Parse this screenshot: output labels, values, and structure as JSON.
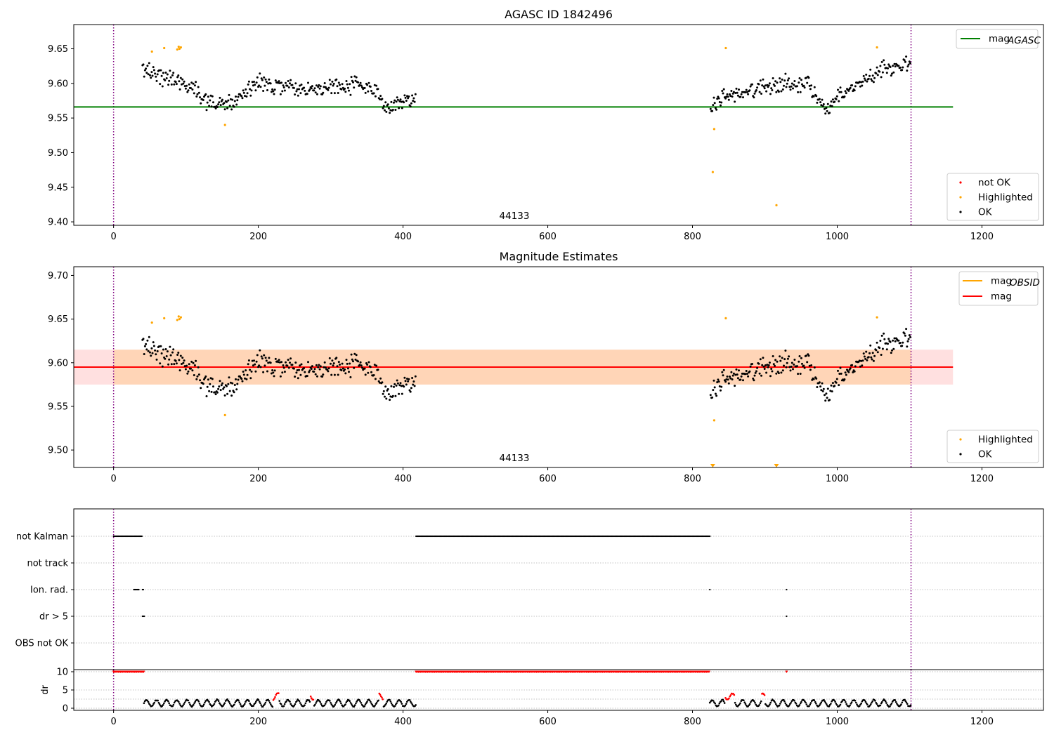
{
  "x_ticks": [
    0,
    200,
    400,
    600,
    800,
    1000,
    1200
  ],
  "obsid_boundaries": [
    0,
    1102
  ],
  "panel1": {
    "title": "AGASC ID 1842496",
    "annotation": "44133",
    "ylim": [
      9.395,
      9.685
    ],
    "y_ticks": [
      "9.40",
      "9.45",
      "9.50",
      "9.55",
      "9.60",
      "9.65"
    ],
    "agasc_mag": 9.566,
    "legend_top": [
      {
        "label": "mag",
        "sub": "AGASC",
        "color": "#008000"
      }
    ],
    "legend_bottom": [
      {
        "label": "not OK",
        "color": "#ff0000"
      },
      {
        "label": "Highlighted",
        "color": "#ffa500"
      },
      {
        "label": "OK",
        "color": "#000000"
      }
    ]
  },
  "panel2": {
    "title": "Magnitude Estimates",
    "annotation": "44133",
    "ylim": [
      9.48,
      9.71
    ],
    "y_ticks": [
      "9.50",
      "9.55",
      "9.60",
      "9.65",
      "9.70"
    ],
    "mag": 9.595,
    "mag_band": [
      9.575,
      9.615
    ],
    "obsid_mag": 9.595,
    "obsid_band": [
      9.575,
      9.615
    ],
    "legend_top": [
      {
        "label": "mag",
        "sub": "OBSID",
        "color": "#ffa500"
      },
      {
        "label": "mag",
        "sub": "",
        "color": "#ff0000"
      }
    ],
    "legend_bottom": [
      {
        "label": "Highlighted",
        "color": "#ffa500"
      },
      {
        "label": "OK",
        "color": "#000000"
      }
    ]
  },
  "panel3": {
    "flags": [
      "not Kalman",
      "not track",
      "Ion. rad.",
      "dr > 5",
      "OBS not OK"
    ],
    "dr_ylabel": "dr",
    "dr_ticks": [
      "0",
      "5",
      "10"
    ]
  },
  "colors": {
    "ok": "#000000",
    "highlighted": "#ffa500",
    "not_ok": "#ff0000",
    "boundary": "#800080",
    "grid": "#b0b0b0"
  },
  "chart_data": [
    {
      "type": "scatter",
      "title": "AGASC ID 1842496",
      "xlabel": "",
      "ylabel": "",
      "xlim": [
        -55,
        1285
      ],
      "ylim": [
        9.395,
        9.685
      ],
      "series": [
        {
          "name": "OK",
          "segments": [
            {
              "x_range": [
                40,
                418
              ],
              "trend": [
                [
                  40,
                  9.62
                ],
                [
                  100,
                  9.6
                ],
                [
                  140,
                  9.57
                ],
                [
                  160,
                  9.57
                ],
                [
                  200,
                  9.6
                ],
                [
                  260,
                  9.59
                ],
                [
                  340,
                  9.6
                ],
                [
                  380,
                  9.57
                ],
                [
                  418,
                  9.58
                ]
              ]
            },
            {
              "x_range": [
                825,
                1102
              ],
              "trend": [
                [
                  825,
                  9.565
                ],
                [
                  840,
                  9.58
                ],
                [
                  880,
                  9.59
                ],
                [
                  920,
                  9.6
                ],
                [
                  960,
                  9.6
                ],
                [
                  985,
                  9.56
                ],
                [
                  1000,
                  9.58
                ],
                [
                  1060,
                  9.62
                ],
                [
                  1102,
                  9.63
                ]
              ]
            }
          ]
        },
        {
          "name": "Highlighted",
          "x": [
            53,
            70,
            88,
            90,
            91,
            93,
            154,
            828,
            830,
            846,
            916,
            1055
          ],
          "y": [
            9.646,
            9.651,
            9.649,
            9.653,
            9.65,
            9.652,
            9.54,
            9.472,
            9.534,
            9.651,
            9.424,
            9.652
          ]
        },
        {
          "name": "mag_AGASC",
          "y": 9.566
        }
      ]
    },
    {
      "type": "scatter",
      "title": "Magnitude Estimates",
      "xlabel": "",
      "ylabel": "",
      "xlim": [
        -55,
        1285
      ],
      "ylim": [
        9.48,
        9.71
      ],
      "series": [
        {
          "name": "mag",
          "y": 9.595,
          "band": [
            9.575,
            9.615
          ]
        },
        {
          "name": "mag_OBSID",
          "y": 9.595,
          "band": [
            9.575,
            9.615
          ]
        },
        {
          "name": "Highlighted",
          "x": [
            53,
            70,
            88,
            90,
            91,
            93,
            154,
            828,
            830,
            846,
            916,
            1055
          ],
          "y": [
            9.646,
            9.651,
            9.649,
            9.653,
            9.65,
            9.652,
            9.54,
            9.482,
            9.534,
            9.651,
            9.482,
            9.652
          ]
        }
      ]
    },
    {
      "type": "scatter",
      "title": "",
      "categories": [
        "not Kalman",
        "not track",
        "Ion. rad.",
        "dr > 5",
        "OBS not OK"
      ],
      "flag_ranges": {
        "not Kalman": [
          [
            0,
            40
          ],
          [
            418,
            824
          ]
        ],
        "not track": [],
        "Ion. rad.": [
          [
            28,
            35
          ],
          [
            40,
            42
          ],
          [
            824,
            825
          ],
          [
            930,
            931
          ]
        ],
        "dr > 5": [
          [
            40,
            43
          ],
          [
            930,
            931
          ]
        ],
        "OBS not OK": []
      },
      "dr": {
        "ylim": [
          0,
          10
        ],
        "clipped_at_10": [
          [
            0,
            42
          ],
          [
            418,
            824
          ],
          [
            930,
            931
          ]
        ]
      }
    }
  ]
}
